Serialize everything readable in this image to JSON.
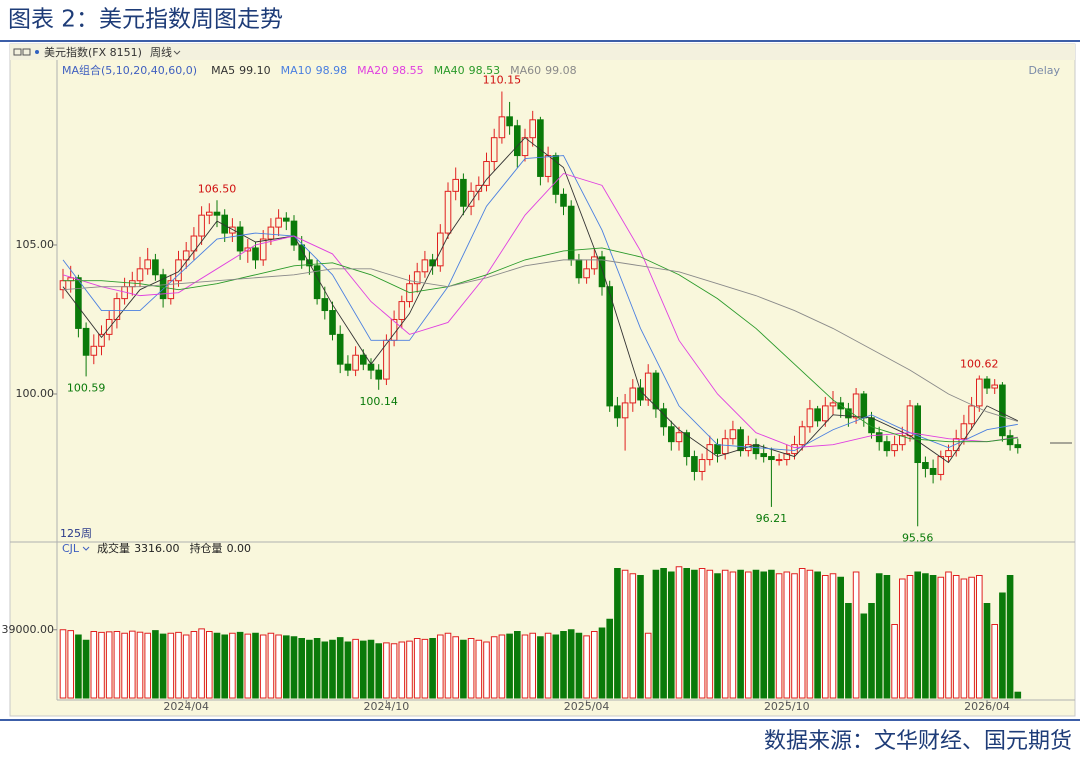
{
  "chart_data": {
    "type": "candlestick",
    "title": "图表 2：美元指数周图走势",
    "source": "数据来源：文华财经、国元期货",
    "instrument": "美元指数(FX 8151)",
    "period": "周线",
    "ma_legend_title": "MA组合(5,10,20,40,60,0)",
    "delay": "Delay",
    "bar_count_label": "125周",
    "up_color": "#e02020",
    "down_color": "#0a7a0a",
    "ylim": [
      95.1,
      111.14
    ],
    "yticks": [
      {
        "value": 100,
        "label": "100.00"
      },
      {
        "value": 105,
        "label": "105.00"
      }
    ],
    "xticks": [
      {
        "value": 16,
        "label": "2024/04"
      },
      {
        "value": 42,
        "label": "2024/10"
      },
      {
        "value": 68,
        "label": "2025/04"
      },
      {
        "value": 94,
        "label": "2025/10"
      },
      {
        "value": 120,
        "label": "2026/04"
      }
    ],
    "candles": [
      [
        103.5,
        104.2,
        103.2,
        103.8
      ],
      [
        103.8,
        104.3,
        103.4,
        103.9
      ],
      [
        103.9,
        104.0,
        101.9,
        102.2
      ],
      [
        102.2,
        102.4,
        100.59,
        101.3
      ],
      [
        101.3,
        102.0,
        101.0,
        101.6
      ],
      [
        101.6,
        102.3,
        101.3,
        102.0
      ],
      [
        102.0,
        102.8,
        101.8,
        102.5
      ],
      [
        102.5,
        103.4,
        102.2,
        103.2
      ],
      [
        103.2,
        103.9,
        103.0,
        103.6
      ],
      [
        103.6,
        104.1,
        103.3,
        103.8
      ],
      [
        103.8,
        104.6,
        103.6,
        104.2
      ],
      [
        104.2,
        104.9,
        104.0,
        104.5
      ],
      [
        104.5,
        104.7,
        103.8,
        104.0
      ],
      [
        104.0,
        104.2,
        102.9,
        103.2
      ],
      [
        103.2,
        104.0,
        103.0,
        103.8
      ],
      [
        103.8,
        104.8,
        103.6,
        104.5
      ],
      [
        104.5,
        105.1,
        104.2,
        104.8
      ],
      [
        104.8,
        105.6,
        104.5,
        105.3
      ],
      [
        105.3,
        106.3,
        105.0,
        106.0
      ],
      [
        106.0,
        106.4,
        105.7,
        106.1
      ],
      [
        106.1,
        106.5,
        105.6,
        106.0
      ],
      [
        106.0,
        106.2,
        105.1,
        105.4
      ],
      [
        105.4,
        105.9,
        105.1,
        105.6
      ],
      [
        105.6,
        105.8,
        104.5,
        104.8
      ],
      [
        104.8,
        105.2,
        104.4,
        104.9
      ],
      [
        104.9,
        105.1,
        104.2,
        104.5
      ],
      [
        104.5,
        105.5,
        104.3,
        105.2
      ],
      [
        105.2,
        105.9,
        105.0,
        105.6
      ],
      [
        105.6,
        106.2,
        105.3,
        105.9
      ],
      [
        105.9,
        106.1,
        105.5,
        105.8
      ],
      [
        105.8,
        106.0,
        104.8,
        105.0
      ],
      [
        105.0,
        105.3,
        104.2,
        104.5
      ],
      [
        104.5,
        104.8,
        104.0,
        104.3
      ],
      [
        104.3,
        104.5,
        103.0,
        103.2
      ],
      [
        103.2,
        103.6,
        102.5,
        102.8
      ],
      [
        102.8,
        103.1,
        101.8,
        102.0
      ],
      [
        102.0,
        102.3,
        100.7,
        101.0
      ],
      [
        101.0,
        101.3,
        100.6,
        100.8
      ],
      [
        100.8,
        101.6,
        100.6,
        101.3
      ],
      [
        101.3,
        101.5,
        100.8,
        101.0
      ],
      [
        101.0,
        101.2,
        100.5,
        100.8
      ],
      [
        100.8,
        101.0,
        100.14,
        100.5
      ],
      [
        100.5,
        102.0,
        100.3,
        101.8
      ],
      [
        101.8,
        102.8,
        101.6,
        102.5
      ],
      [
        102.5,
        103.3,
        102.2,
        103.1
      ],
      [
        103.1,
        104.0,
        102.9,
        103.7
      ],
      [
        103.7,
        104.4,
        103.4,
        104.1
      ],
      [
        104.1,
        104.8,
        103.9,
        104.5
      ],
      [
        104.5,
        104.7,
        104.0,
        104.3
      ],
      [
        104.3,
        105.7,
        104.1,
        105.4
      ],
      [
        105.4,
        107.1,
        105.2,
        106.8
      ],
      [
        106.8,
        107.6,
        106.5,
        107.2
      ],
      [
        107.2,
        107.4,
        106.0,
        106.3
      ],
      [
        106.3,
        107.1,
        106.0,
        106.8
      ],
      [
        106.8,
        107.3,
        106.5,
        107.0
      ],
      [
        107.0,
        108.1,
        106.8,
        107.8
      ],
      [
        107.8,
        108.9,
        107.5,
        108.6
      ],
      [
        108.6,
        110.15,
        108.4,
        109.3
      ],
      [
        109.3,
        109.8,
        108.7,
        109.0
      ],
      [
        109.0,
        109.2,
        107.6,
        108.0
      ],
      [
        108.0,
        108.9,
        107.8,
        108.6
      ],
      [
        108.6,
        109.5,
        108.3,
        109.2
      ],
      [
        109.2,
        109.3,
        107.0,
        107.3
      ],
      [
        107.3,
        108.3,
        107.1,
        108.0
      ],
      [
        108.0,
        108.1,
        106.4,
        106.7
      ],
      [
        106.7,
        106.9,
        106.0,
        106.3
      ],
      [
        106.3,
        106.5,
        104.3,
        104.5
      ],
      [
        104.5,
        104.7,
        103.7,
        103.9
      ],
      [
        103.9,
        104.5,
        103.7,
        104.2
      ],
      [
        104.2,
        104.9,
        104.0,
        104.6
      ],
      [
        104.6,
        104.8,
        103.3,
        103.6
      ],
      [
        103.6,
        103.8,
        99.4,
        99.6
      ],
      [
        99.6,
        99.9,
        98.9,
        99.2
      ],
      [
        99.2,
        100.0,
        98.1,
        99.7
      ],
      [
        99.7,
        100.5,
        99.4,
        100.2
      ],
      [
        100.2,
        100.5,
        99.6,
        99.8
      ],
      [
        99.8,
        101.0,
        99.6,
        100.7
      ],
      [
        100.7,
        100.8,
        99.2,
        99.5
      ],
      [
        99.5,
        99.7,
        98.6,
        98.9
      ],
      [
        98.9,
        99.1,
        98.1,
        98.4
      ],
      [
        98.4,
        98.9,
        98.1,
        98.7
      ],
      [
        98.7,
        98.8,
        97.6,
        97.9
      ],
      [
        97.9,
        98.1,
        97.1,
        97.4
      ],
      [
        97.4,
        98.0,
        97.1,
        97.8
      ],
      [
        97.8,
        98.6,
        97.6,
        98.3
      ],
      [
        98.3,
        98.5,
        97.7,
        98.0
      ],
      [
        98.0,
        98.8,
        97.8,
        98.5
      ],
      [
        98.5,
        99.1,
        98.3,
        98.8
      ],
      [
        98.8,
        98.9,
        97.9,
        98.1
      ],
      [
        98.1,
        98.6,
        97.9,
        98.3
      ],
      [
        98.3,
        98.5,
        97.8,
        98.0
      ],
      [
        98.0,
        98.3,
        97.7,
        97.9
      ],
      [
        97.9,
        98.2,
        96.21,
        97.8
      ],
      [
        97.8,
        98.0,
        97.6,
        97.8
      ],
      [
        97.8,
        98.3,
        97.6,
        98.0
      ],
      [
        98.0,
        98.6,
        97.8,
        98.3
      ],
      [
        98.3,
        99.1,
        98.1,
        98.9
      ],
      [
        98.9,
        99.8,
        98.7,
        99.5
      ],
      [
        99.5,
        99.6,
        98.9,
        99.1
      ],
      [
        99.1,
        99.9,
        98.9,
        99.6
      ],
      [
        99.6,
        100.1,
        99.3,
        99.7
      ],
      [
        99.7,
        99.9,
        99.2,
        99.5
      ],
      [
        99.5,
        99.7,
        98.9,
        99.2
      ],
      [
        99.2,
        100.2,
        99.0,
        100.0
      ],
      [
        100.0,
        100.1,
        98.9,
        99.2
      ],
      [
        99.2,
        99.4,
        98.5,
        98.7
      ],
      [
        98.7,
        98.9,
        98.1,
        98.4
      ],
      [
        98.4,
        98.6,
        97.9,
        98.1
      ],
      [
        98.1,
        98.6,
        97.9,
        98.3
      ],
      [
        98.3,
        98.9,
        98.1,
        98.6
      ],
      [
        98.6,
        99.8,
        98.4,
        99.6
      ],
      [
        99.6,
        99.7,
        95.56,
        97.7
      ],
      [
        97.7,
        97.9,
        97.2,
        97.5
      ],
      [
        97.5,
        97.8,
        97.0,
        97.3
      ],
      [
        97.3,
        98.1,
        97.1,
        97.9
      ],
      [
        97.9,
        98.3,
        97.7,
        98.1
      ],
      [
        98.1,
        98.8,
        97.9,
        98.5
      ],
      [
        98.5,
        99.3,
        98.3,
        99.0
      ],
      [
        99.0,
        99.9,
        98.8,
        99.6
      ],
      [
        99.6,
        100.62,
        99.4,
        100.5
      ],
      [
        100.5,
        100.6,
        100.0,
        100.2
      ],
      [
        100.2,
        100.5,
        100.0,
        100.3
      ],
      [
        100.3,
        100.4,
        98.4,
        98.6
      ],
      [
        98.6,
        98.8,
        98.1,
        98.3
      ],
      [
        98.3,
        98.5,
        98.0,
        98.2
      ]
    ],
    "annotations": [
      {
        "index": 3,
        "value": 100.59,
        "label": "100.59"
      },
      {
        "index": 20,
        "value": 106.5,
        "label": "106.50"
      },
      {
        "index": 41,
        "value": 100.14,
        "label": "100.14"
      },
      {
        "index": 57,
        "value": 110.15,
        "label": "110.15"
      },
      {
        "index": 92,
        "value": 96.21,
        "label": "96.21"
      },
      {
        "index": 111,
        "value": 95.56,
        "label": "95.56"
      },
      {
        "index": 119,
        "value": 100.62,
        "label": "100.62"
      }
    ],
    "ma_x": [
      0,
      5,
      10,
      15,
      20,
      25,
      30,
      35,
      40,
      45,
      50,
      55,
      60,
      65,
      70,
      75,
      80,
      85,
      90,
      95,
      100,
      105,
      110,
      115,
      120,
      124
    ],
    "moving_averages": [
      {
        "name": "MA5",
        "legend_label": "99.10",
        "color": "#333333",
        "values": [
          103.6,
          101.9,
          103.5,
          104.1,
          105.8,
          105.1,
          105.3,
          103.0,
          101.0,
          102.7,
          105.3,
          107.2,
          108.6,
          107.6,
          104.2,
          100.1,
          98.8,
          97.9,
          98.3,
          97.9,
          99.3,
          99.2,
          98.6,
          97.7,
          99.6,
          99.1
        ]
      },
      {
        "name": "MA10",
        "legend_label": "98.98",
        "color": "#4a7fe0",
        "values": [
          104.5,
          102.8,
          102.8,
          104.0,
          105.2,
          105.4,
          105.3,
          104.0,
          101.8,
          101.8,
          103.6,
          106.3,
          107.9,
          108.0,
          105.5,
          102.2,
          99.6,
          98.3,
          98.2,
          98.1,
          98.8,
          99.3,
          98.7,
          98.2,
          98.8,
          98.98
        ]
      },
      {
        "name": "MA20",
        "legend_label": "98.55",
        "color": "#e040e0",
        "values": [
          104.0,
          103.6,
          103.3,
          103.4,
          104.2,
          105.0,
          105.3,
          104.7,
          103.1,
          102.0,
          102.4,
          104.0,
          106.0,
          107.4,
          107.0,
          104.8,
          101.8,
          100.0,
          98.7,
          98.2,
          98.3,
          98.6,
          98.7,
          98.5,
          98.4,
          98.55
        ]
      },
      {
        "name": "MA40",
        "legend_label": "98.53",
        "color": "#2a9a2a",
        "values": [
          103.8,
          103.8,
          103.7,
          103.5,
          103.7,
          104.0,
          104.3,
          104.4,
          104.0,
          103.4,
          103.6,
          104.0,
          104.5,
          104.8,
          104.9,
          104.6,
          104.0,
          103.2,
          102.2,
          101.0,
          99.8,
          98.9,
          98.5,
          98.4,
          98.4,
          98.53
        ]
      },
      {
        "name": "MA60",
        "legend_label": "99.08",
        "color": "#8a8a8a",
        "values": [
          103.5,
          103.6,
          103.6,
          103.7,
          103.8,
          103.9,
          104.0,
          104.2,
          104.2,
          103.8,
          103.6,
          103.9,
          104.3,
          104.5,
          104.5,
          104.3,
          104.1,
          103.7,
          103.3,
          102.8,
          102.2,
          101.5,
          100.8,
          100.0,
          99.4,
          99.08
        ]
      }
    ],
    "volume": {
      "name": "CJL",
      "label": "成交量",
      "last_label": "3316.00",
      "open_interest_label": "持仓量",
      "open_interest": "0.00",
      "ylim": [
        0,
        80000
      ],
      "yticks": [
        {
          "value": 39000,
          "label": "39000.00"
        }
      ],
      "values": [
        39000,
        38500,
        36000,
        33000,
        38000,
        37500,
        37800,
        38000,
        37000,
        38200,
        37600,
        37000,
        38500,
        36500,
        37000,
        37500,
        36000,
        38000,
        39500,
        38000,
        37000,
        36000,
        37000,
        37500,
        36500,
        37000,
        36000,
        37000,
        36000,
        35500,
        35000,
        34000,
        33000,
        34000,
        32000,
        33000,
        34500,
        32000,
        33500,
        32500,
        33000,
        31000,
        31500,
        31000,
        32000,
        32500,
        34000,
        33500,
        34000,
        36000,
        37000,
        35000,
        33000,
        34000,
        33000,
        32000,
        35000,
        36000,
        36500,
        38000,
        36000,
        37000,
        35000,
        37000,
        36000,
        38000,
        39000,
        37000,
        35500,
        38000,
        40000,
        45000,
        74000,
        73000,
        71000,
        70000,
        37000,
        73000,
        74000,
        72000,
        75000,
        74000,
        73000,
        74000,
        73000,
        71000,
        73000,
        72000,
        73000,
        72000,
        73000,
        72000,
        73000,
        71000,
        72000,
        71000,
        74000,
        73000,
        72000,
        70000,
        71000,
        69000,
        54000,
        72000,
        48000,
        54000,
        71000,
        70000,
        42000,
        68000,
        70000,
        72000,
        71000,
        70000,
        69000,
        72000,
        70000,
        68000,
        69000,
        70000,
        54000,
        42000,
        60000,
        70000,
        3316
      ]
    }
  }
}
